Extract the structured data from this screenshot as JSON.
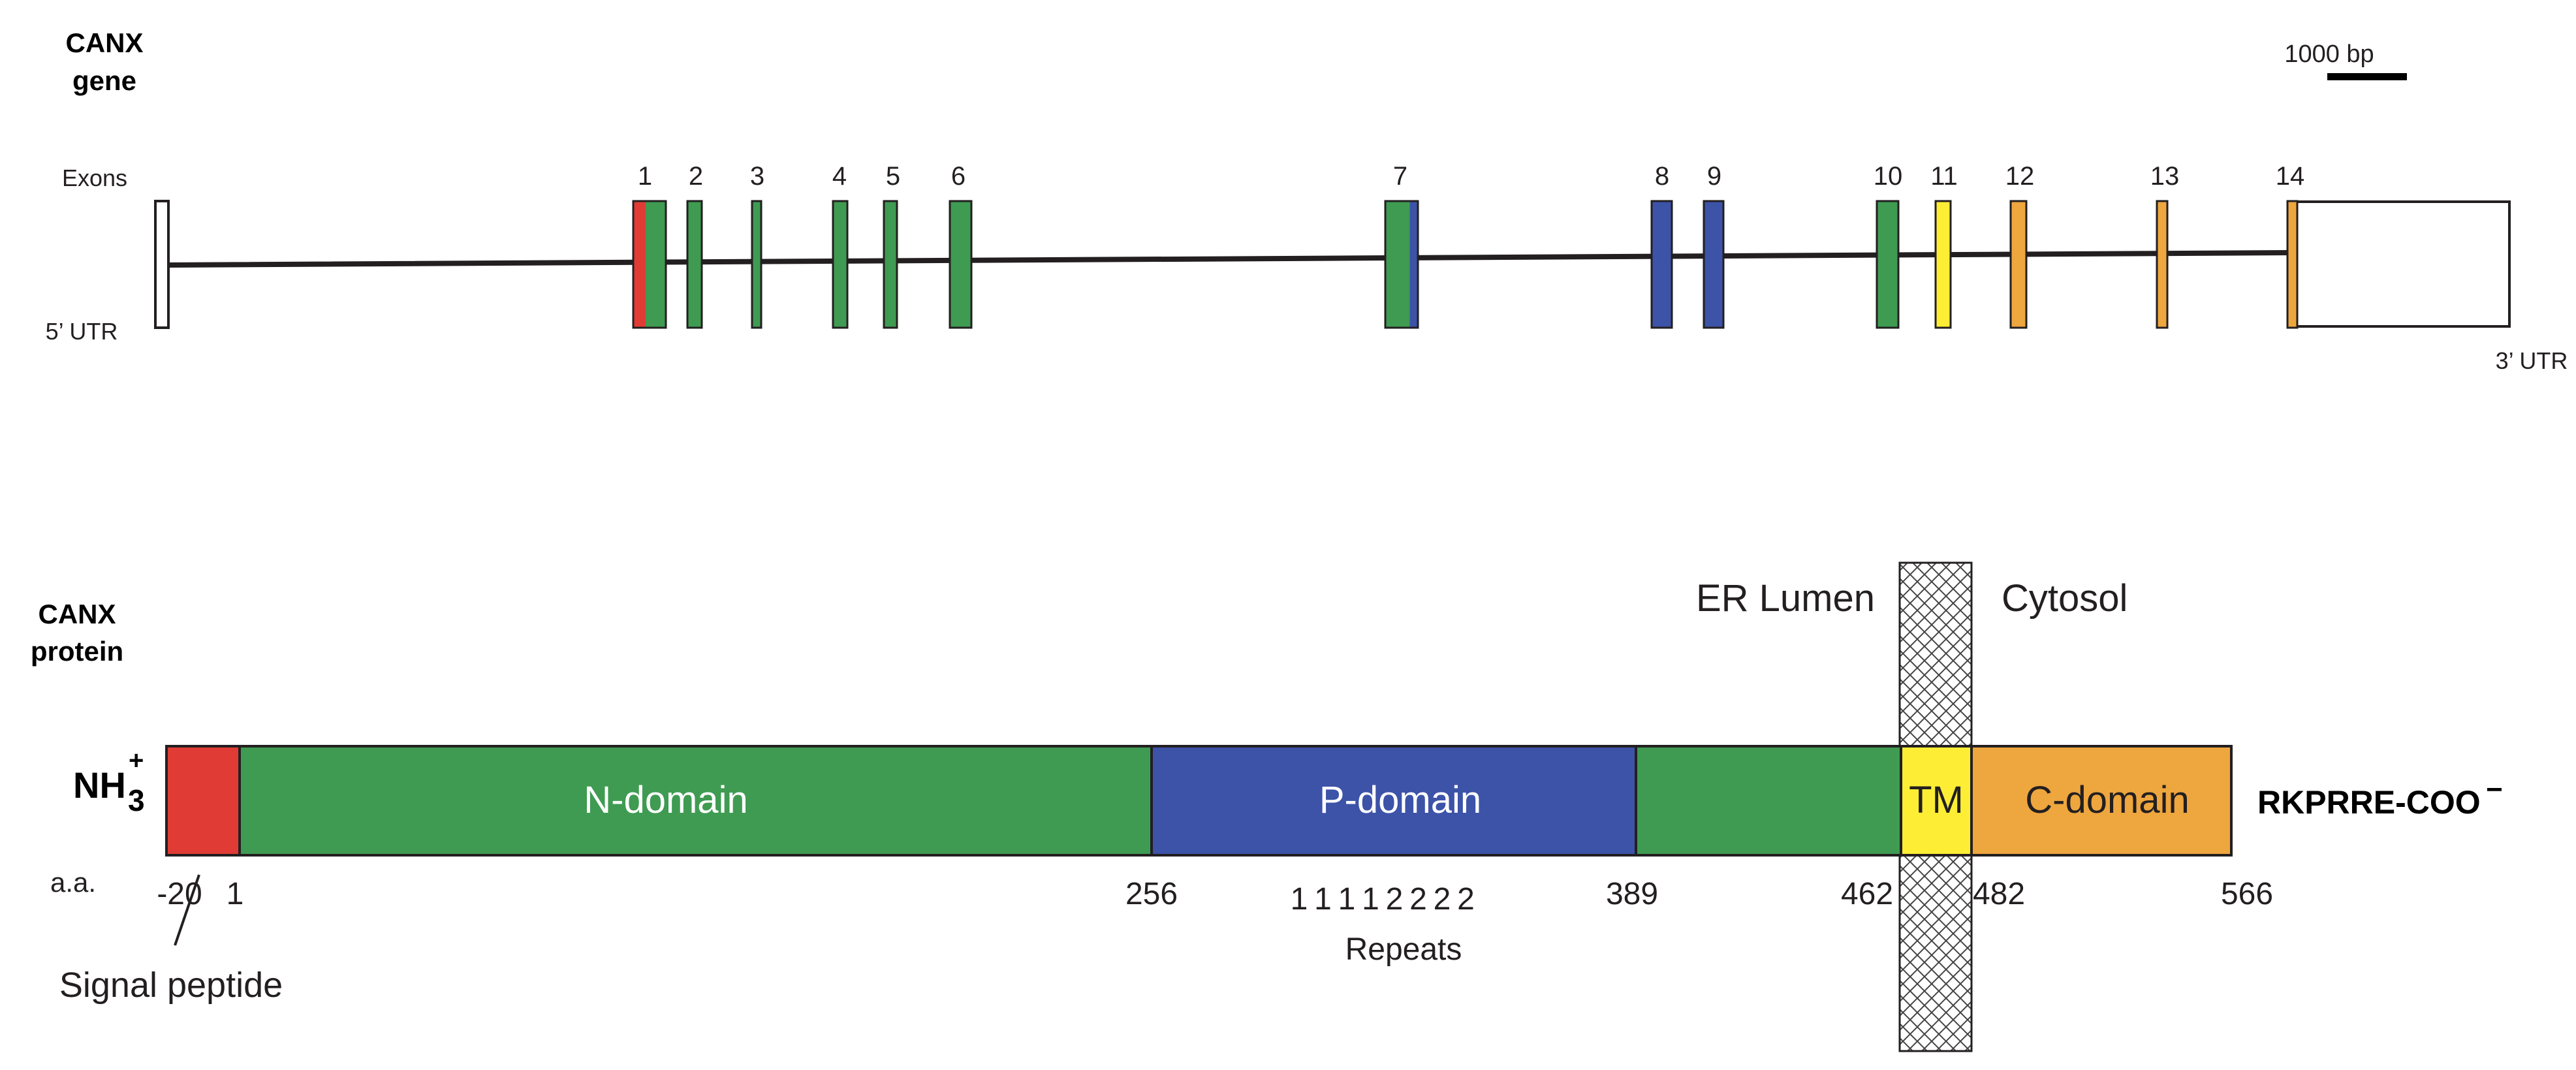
{
  "gene": {
    "title_line1": "CANX",
    "title_line2": "gene",
    "scale_label": "1000 bp",
    "exons_label": "Exons",
    "utr5_label": "5’ UTR",
    "utr3_label": "3’ UTR",
    "exons": [
      {
        "label": "1",
        "colors": [
          "#e03c35",
          "#3f9b52"
        ]
      },
      {
        "label": "2",
        "colors": [
          "#3f9b52"
        ]
      },
      {
        "label": "3",
        "colors": [
          "#3f9b52"
        ]
      },
      {
        "label": "4",
        "colors": [
          "#3f9b52"
        ]
      },
      {
        "label": "5",
        "colors": [
          "#3f9b52"
        ]
      },
      {
        "label": "6",
        "colors": [
          "#3f9b52"
        ]
      },
      {
        "label": "7",
        "colors": [
          "#3f9b52",
          "#3c53a8"
        ]
      },
      {
        "label": "8",
        "colors": [
          "#3c53a8"
        ]
      },
      {
        "label": "9",
        "colors": [
          "#3c53a8"
        ]
      },
      {
        "label": "10",
        "colors": [
          "#3f9b52"
        ]
      },
      {
        "label": "11",
        "colors": [
          "#fdee35"
        ]
      },
      {
        "label": "12",
        "colors": [
          "#eea63e"
        ]
      },
      {
        "label": "13",
        "colors": [
          "#eea63e"
        ]
      },
      {
        "label": "14",
        "colors": [
          "#eea63e"
        ]
      }
    ]
  },
  "protein": {
    "title_line1": "CANX",
    "title_line2": "protein",
    "n_terminus_main": "NH",
    "n_terminus_sub": "3",
    "n_terminus_sup": "+",
    "c_terminus_main": "RKPRRE-COO",
    "c_terminus_sup": "−",
    "er_lumen_label": "ER Lumen",
    "cytosol_label": "Cytosol",
    "aa_label": "a.a.",
    "signal_peptide_label": "Signal peptide",
    "repeats_label": "Repeats",
    "repeat_digits": [
      "1",
      "1",
      "1",
      "1",
      "2",
      "2",
      "2",
      "2"
    ],
    "positions": [
      "-20",
      "1",
      "256",
      "389",
      "462",
      "482",
      "566"
    ],
    "domains": [
      {
        "name": "signal-peptide",
        "label": "",
        "color": "#e03c35"
      },
      {
        "name": "n-domain",
        "label": "N-domain",
        "color": "#3f9b52"
      },
      {
        "name": "p-domain",
        "label": "P-domain",
        "color": "#3c53a8"
      },
      {
        "name": "n-domain-2",
        "label": "",
        "color": "#3f9b52"
      },
      {
        "name": "tm",
        "label": "TM",
        "color": "#fdee35"
      },
      {
        "name": "c-domain",
        "label": "C-domain",
        "color": "#eea63e"
      }
    ]
  }
}
